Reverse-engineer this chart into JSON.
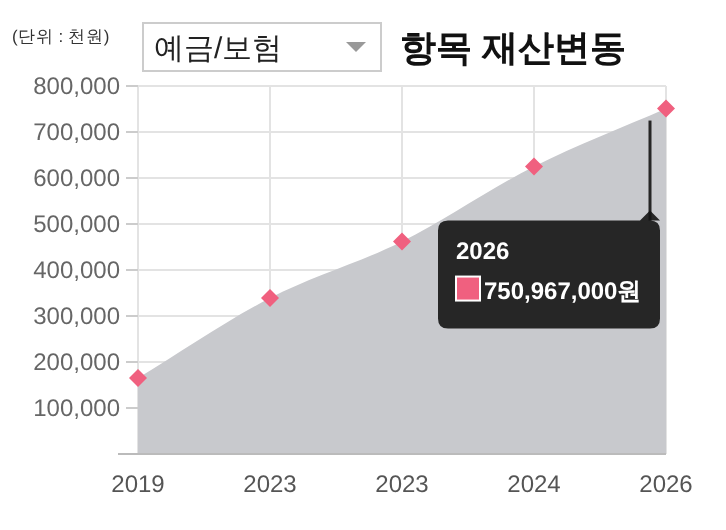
{
  "chart_data": {
    "type": "area",
    "title": "항목 재산변동",
    "subtitle": "예금/보험",
    "ylabel": "(단위 : 천원)",
    "categories": [
      "2019",
      "2023",
      "2023",
      "2024",
      "2026"
    ],
    "series": [
      {
        "color": "#c8c9cd",
        "values": [
          165000,
          339000,
          462000,
          625000,
          750967
        ]
      },
      {
        "type": "scatter",
        "color": "#f0607f",
        "marker": "diamond",
        "values": [
          165000,
          339000,
          462000,
          625000,
          750967
        ]
      }
    ],
    "ylim": [
      0,
      800000
    ],
    "yticks": [
      {
        "value": 100000,
        "label": "100,000"
      },
      {
        "value": 200000,
        "label": "200,000"
      },
      {
        "value": 300000,
        "label": "300,000"
      },
      {
        "value": 400000,
        "label": "400,000"
      },
      {
        "value": 500000,
        "label": "500,000"
      },
      {
        "value": 600000,
        "label": "600,000"
      },
      {
        "value": 700000,
        "label": "700,000"
      },
      {
        "value": 800000,
        "label": "800,000"
      }
    ],
    "grid": true,
    "annotations": [
      "750,967,000원"
    ]
  }
}
